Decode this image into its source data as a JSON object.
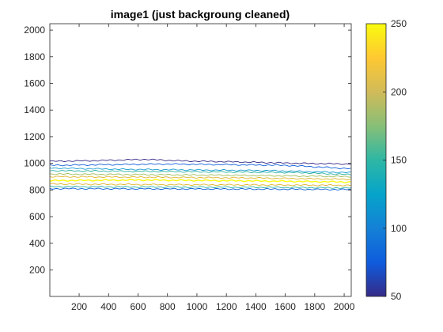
{
  "chart_data": {
    "type": "contour",
    "title": "image1 (just backgroung cleaned)",
    "xlabel": "",
    "ylabel": "",
    "xlim": [
      1,
      2048
    ],
    "ylim": [
      1,
      2048
    ],
    "x_ticks": [
      200,
      400,
      600,
      800,
      1000,
      1200,
      1400,
      1600,
      1800,
      2000
    ],
    "y_ticks": [
      200,
      400,
      600,
      800,
      1000,
      1200,
      1400,
      1600,
      1800,
      2000
    ],
    "grid": false,
    "colormap": "parula",
    "colorbar": {
      "placement": "right",
      "range": [
        50,
        250
      ],
      "ticks": [
        50,
        100,
        150,
        200,
        250
      ]
    },
    "contour_levels": [
      {
        "level": 50,
        "color": "#352a87",
        "y_profile": [
          [
            1,
            1015
          ],
          [
            300,
            1020
          ],
          [
            650,
            1030
          ],
          [
            900,
            1018
          ],
          [
            1300,
            1010
          ],
          [
            1700,
            1000
          ],
          [
            2048,
            995
          ]
        ]
      },
      {
        "level": 80,
        "color": "#0d5dd8",
        "y_profile": [
          [
            1,
            985
          ],
          [
            400,
            990
          ],
          [
            800,
            995
          ],
          [
            1200,
            990
          ],
          [
            1600,
            985
          ],
          [
            2048,
            960
          ]
        ]
      },
      {
        "level": 110,
        "color": "#139ad0",
        "y_profile": [
          [
            1,
            965
          ],
          [
            500,
            955
          ],
          [
            1000,
            950
          ],
          [
            1500,
            945
          ],
          [
            2048,
            930
          ]
        ]
      },
      {
        "level": 150,
        "color": "#2bb2a0",
        "y_profile": [
          [
            1,
            945
          ],
          [
            600,
            940
          ],
          [
            1200,
            935
          ],
          [
            1700,
            930
          ],
          [
            2048,
            915
          ]
        ]
      },
      {
        "level": 190,
        "color": "#9fbd57",
        "y_profile": [
          [
            1,
            920
          ],
          [
            700,
            915
          ],
          [
            1300,
            910
          ],
          [
            2048,
            900
          ]
        ]
      },
      {
        "level": 215,
        "color": "#e0b52b",
        "y_profile": [
          [
            1,
            900
          ],
          [
            800,
            895
          ],
          [
            1400,
            890
          ],
          [
            2048,
            880
          ]
        ]
      },
      {
        "level": 245,
        "color": "#f9fb0e",
        "y_profile": [
          [
            1,
            870
          ],
          [
            600,
            875
          ],
          [
            1200,
            870
          ],
          [
            2048,
            860
          ]
        ]
      },
      {
        "level": 215,
        "color": "#e0b52b",
        "y_profile": [
          [
            1,
            845
          ],
          [
            800,
            840
          ],
          [
            1400,
            838
          ],
          [
            2048,
            835
          ]
        ]
      },
      {
        "level": 150,
        "color": "#2bb2a0",
        "y_profile": [
          [
            1,
            825
          ],
          [
            800,
            822
          ],
          [
            1500,
            820
          ],
          [
            2048,
            815
          ]
        ]
      },
      {
        "level": 80,
        "color": "#0d5dd8",
        "y_profile": [
          [
            1,
            810
          ],
          [
            900,
            808
          ],
          [
            1600,
            806
          ],
          [
            2048,
            803
          ]
        ]
      }
    ]
  },
  "colors": {
    "axis": "#262626",
    "colormap_stops": [
      "#352a87",
      "#0f5cdd",
      "#1481d6",
      "#06a4ca",
      "#2eb7a4",
      "#87bf77",
      "#d1bb59",
      "#fec832",
      "#f9fb0e"
    ]
  }
}
